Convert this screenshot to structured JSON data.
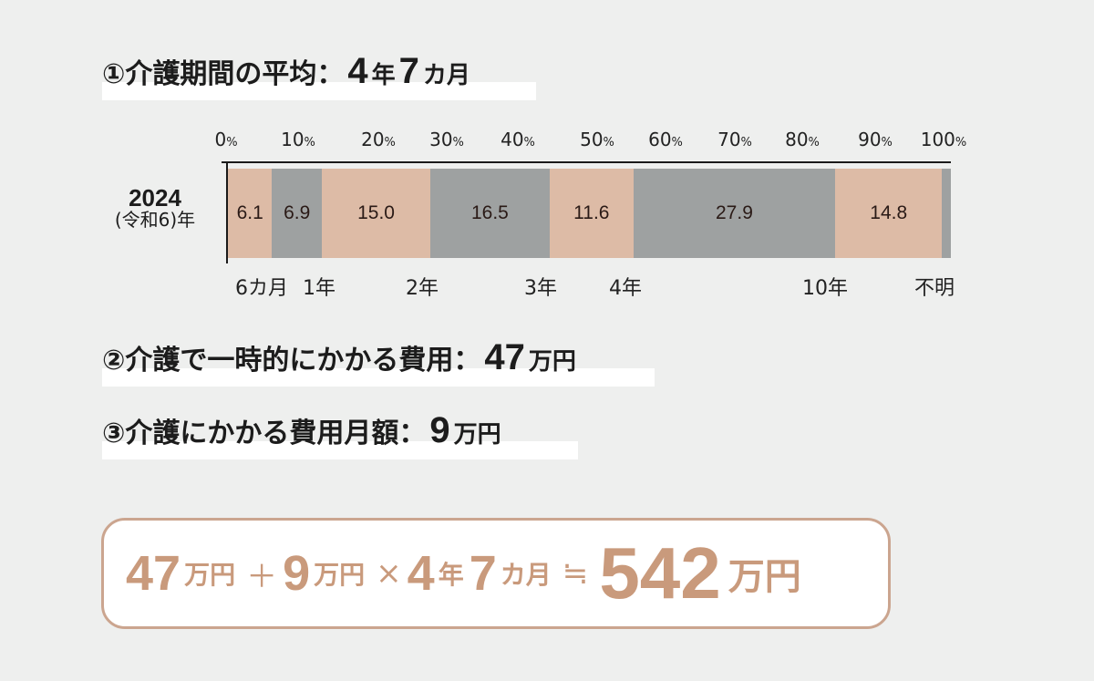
{
  "section1": {
    "label": "①介護期間の平均：",
    "years_value": "4",
    "years_unit": "年",
    "months_value": "7",
    "months_unit": "カ月"
  },
  "section2": {
    "label": "②介護で一時的にかかる費用：",
    "value": "47",
    "unit": "万円"
  },
  "section3": {
    "label": "③介護にかかる費用月額：",
    "value": "9",
    "unit": "万円"
  },
  "formula": {
    "a_value": "47",
    "a_unit": "万円",
    "plus": "＋",
    "b_value": "9",
    "b_unit": "万円",
    "times": "×",
    "c_years": "4",
    "c_years_unit": "年",
    "c_months": "7",
    "c_months_unit": "カ月",
    "approx": "≒",
    "result_value": "542",
    "result_unit": "万円"
  },
  "colors": {
    "peach": "#ddbba6",
    "gray": "#9ea1a1",
    "formula_text": "#c99a7c",
    "formula_border": "#cba58f",
    "background": "#eeefee"
  },
  "chart_data": {
    "type": "bar",
    "orientation": "horizontal-stacked-100",
    "title": "介護期間の平均：4年7カ月",
    "categories": [
      "2024(令和6)年"
    ],
    "row_label": {
      "year": "2024",
      "era": "(令和6)年"
    },
    "x_ticks": [
      "0%",
      "10%",
      "20%",
      "30%",
      "40%",
      "50%",
      "60%",
      "70%",
      "80%",
      "90%",
      "100%"
    ],
    "xlim": [
      0,
      100
    ],
    "series": [
      {
        "name": "6カ月未満",
        "value": 6.1,
        "label": "6.1",
        "color": "#ddbba6"
      },
      {
        "name": "6カ月～1年未満",
        "value": 6.9,
        "label": "6.9",
        "color": "#9ea1a1"
      },
      {
        "name": "1年～2年未満",
        "value": 15.0,
        "label": "15.0",
        "color": "#ddbba6"
      },
      {
        "name": "2年～3年未満",
        "value": 16.5,
        "label": "16.5",
        "color": "#9ea1a1"
      },
      {
        "name": "3年～4年未満",
        "value": 11.6,
        "label": "11.6",
        "color": "#ddbba6"
      },
      {
        "name": "4年～10年未満",
        "value": 27.9,
        "label": "27.9",
        "color": "#9ea1a1"
      },
      {
        "name": "10年以上",
        "value": 14.8,
        "label": "14.8",
        "color": "#ddbba6"
      },
      {
        "name": "不明",
        "value": 1.2,
        "label": "",
        "color": "#9ea1a1"
      }
    ],
    "boundary_labels": [
      "6カ月",
      "1年",
      "2年",
      "3年",
      "4年",
      "10年",
      "不明"
    ],
    "grid": false,
    "legend": "none"
  }
}
